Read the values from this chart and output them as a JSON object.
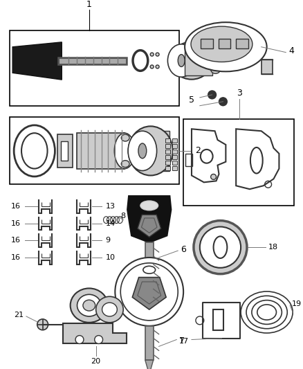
{
  "bg_color": "#ffffff",
  "dc": "#333333",
  "gc": "#888888",
  "lgtc": "#cccccc",
  "tc": "#000000"
}
